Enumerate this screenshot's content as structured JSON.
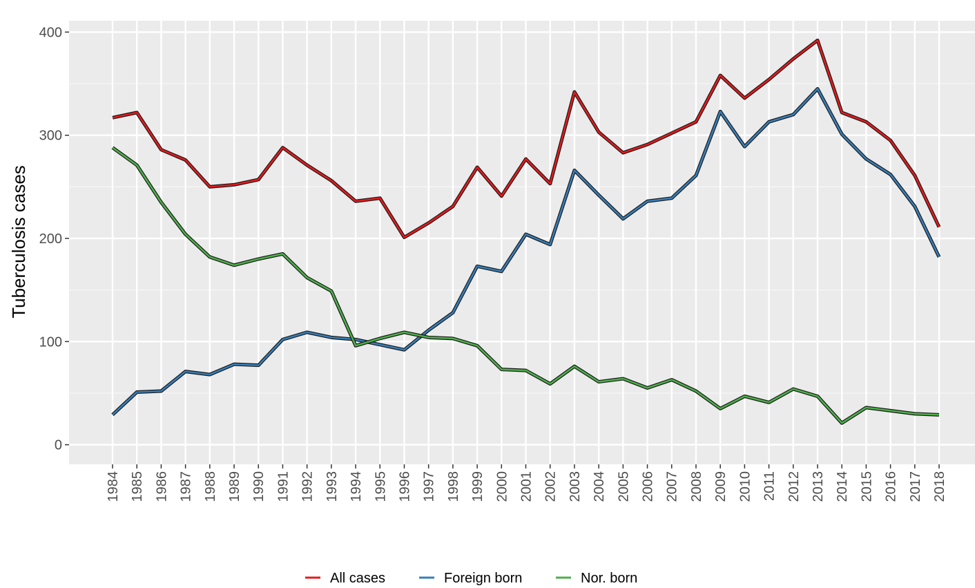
{
  "chart_data": {
    "type": "line",
    "y_label": "Tuberculosis cases",
    "categories": [
      "1984",
      "1985",
      "1986",
      "1987",
      "1988",
      "1989",
      "1990",
      "1991",
      "1992",
      "1993",
      "1994",
      "1995",
      "1996",
      "1997",
      "1998",
      "1999",
      "2000",
      "2001",
      "2002",
      "2003",
      "2004",
      "2005",
      "2006",
      "2007",
      "2008",
      "2009",
      "2010",
      "2011",
      "2012",
      "2013",
      "2014",
      "2015",
      "2016",
      "2017",
      "2018"
    ],
    "series": [
      {
        "name": "All cases",
        "color": "#e41a1c",
        "values": [
          317,
          322,
          286,
          276,
          250,
          252,
          257,
          288,
          271,
          256,
          236,
          239,
          201,
          215,
          231,
          269,
          241,
          277,
          253,
          342,
          303,
          283,
          291,
          302,
          313,
          358,
          336,
          354,
          374,
          392,
          322,
          313,
          295,
          261,
          211
        ]
      },
      {
        "name": "Foreign born",
        "color": "#377eb8",
        "values": [
          29,
          51,
          52,
          71,
          68,
          78,
          77,
          102,
          109,
          104,
          102,
          97,
          92,
          111,
          128,
          173,
          168,
          204,
          194,
          266,
          242,
          219,
          236,
          239,
          261,
          323,
          289,
          313,
          320,
          345,
          301,
          277,
          262,
          231,
          182
        ]
      },
      {
        "name": "Nor. born",
        "color": "#4daf4a",
        "values": [
          288,
          271,
          235,
          204,
          182,
          174,
          180,
          185,
          162,
          149,
          96,
          103,
          109,
          104,
          103,
          96,
          73,
          72,
          59,
          76,
          61,
          64,
          55,
          63,
          52,
          35,
          47,
          41,
          54,
          47,
          21,
          36,
          33,
          30,
          29
        ]
      }
    ],
    "ylim": [
      -19,
      411
    ],
    "yticks": [
      0,
      100,
      200,
      300,
      400
    ],
    "grid": true,
    "legend": "bottom"
  }
}
